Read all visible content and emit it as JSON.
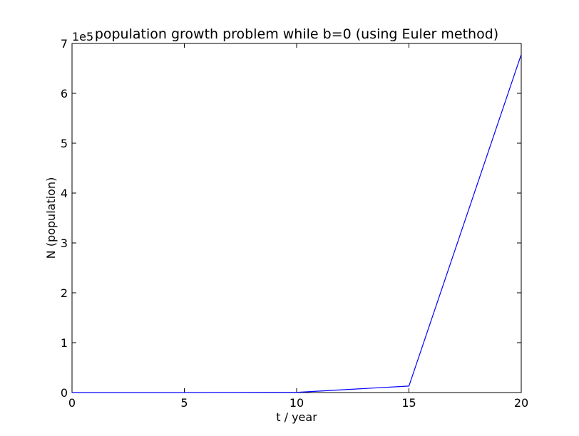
{
  "chart_data": {
    "type": "line",
    "title": "population growth problem while b=0 (using Euler method)",
    "xlabel": "t / year",
    "ylabel": "N (population)",
    "y_offset_label": "1e5",
    "xlim": [
      0,
      20
    ],
    "ylim": [
      0,
      7
    ],
    "x_ticks": [
      0,
      5,
      10,
      15,
      20
    ],
    "y_ticks": [
      0,
      1,
      2,
      3,
      4,
      5,
      6,
      7
    ],
    "x_tick_labels": [
      "0",
      "5",
      "10",
      "15",
      "20"
    ],
    "y_tick_labels": [
      "0",
      "1",
      "2",
      "3",
      "4",
      "5",
      "6",
      "7"
    ],
    "grid": false,
    "series": [
      {
        "color": "#0000ff",
        "x": [
          0,
          5,
          10,
          15,
          20
        ],
        "y": [
          0,
          0.0005,
          0.004,
          0.13,
          6.78
        ]
      }
    ]
  }
}
